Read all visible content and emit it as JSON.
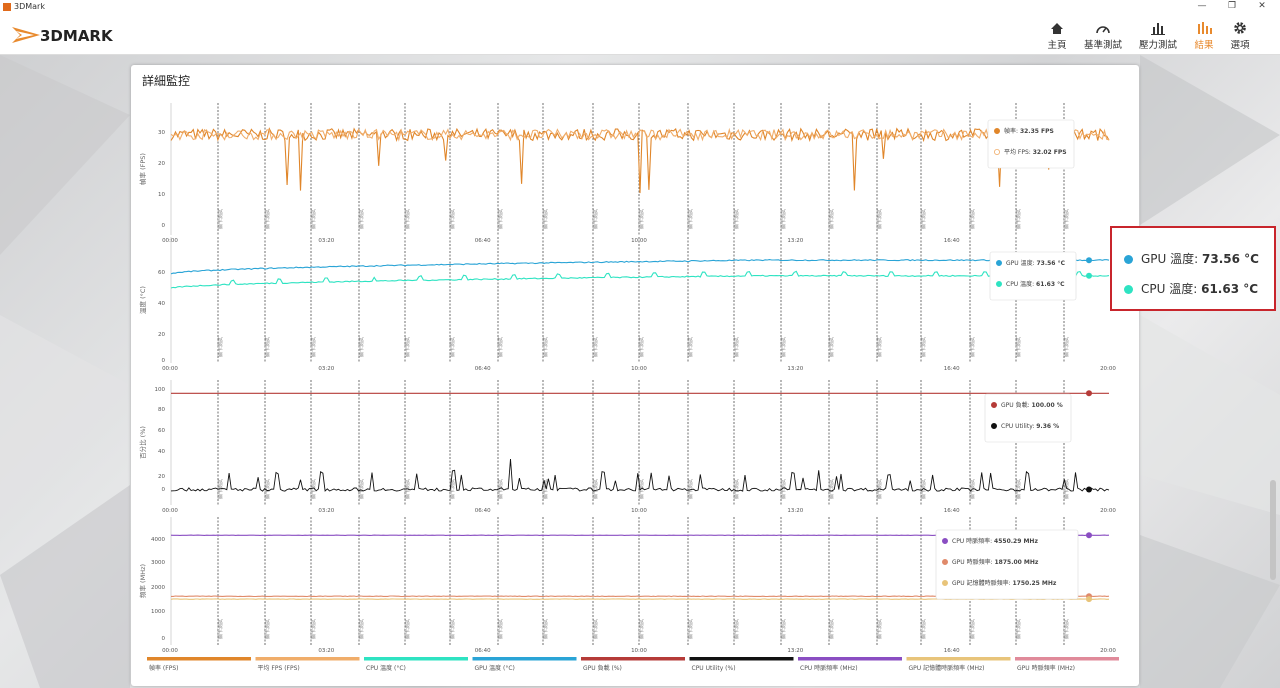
{
  "window": {
    "title": "3DMark",
    "min": "—",
    "restore": "❐",
    "close": "✕"
  },
  "header": {
    "logo_text": "3DMARK",
    "nav": [
      {
        "label": "主頁",
        "icon": "home-icon",
        "active": false
      },
      {
        "label": "基準測試",
        "icon": "gauge-icon",
        "active": false
      },
      {
        "label": "壓力測試",
        "icon": "bars-icon",
        "active": false
      },
      {
        "label": "結果",
        "icon": "results-icon",
        "active": true
      },
      {
        "label": "選項",
        "icon": "gear-icon",
        "active": false
      }
    ]
  },
  "panel": {
    "title": "詳細監控"
  },
  "marker_label": "顯卡測試",
  "time_ticks": [
    "00:00",
    "03:20",
    "06:40",
    "10:00",
    "13:20",
    "16:40",
    "20:00"
  ],
  "chart_data": [
    {
      "type": "line",
      "ylabel": "幀率 (FPS)",
      "yticks": [
        "30",
        "20",
        "10",
        "0"
      ],
      "ylim": [
        0,
        40
      ],
      "series": [
        {
          "name": "幀率",
          "value": "32.35 FPS",
          "color": "#e0862a",
          "approx_level": 32
        },
        {
          "name": "平均 FPS",
          "value": "32.02 FPS",
          "color": "#f0ad6a",
          "approx_level": 32
        }
      ]
    },
    {
      "type": "line",
      "ylabel": "溫度 (°C)",
      "yticks": [
        "60",
        "40",
        "20",
        "0"
      ],
      "ylim": [
        0,
        85
      ],
      "series": [
        {
          "name": "GPU 溫度",
          "value": "73.56 °C",
          "color": "#2aa4d6",
          "start": 63,
          "end": 73.5
        },
        {
          "name": "CPU 溫度",
          "value": "61.63 °C",
          "color": "#2ee3c2",
          "start": 52,
          "end": 61.6
        }
      ]
    },
    {
      "type": "line",
      "ylabel": "百分比 (%)",
      "yticks": [
        "100",
        "80",
        "60",
        "40",
        "20",
        "0"
      ],
      "ylim": [
        0,
        105
      ],
      "series": [
        {
          "name": "GPU 負載",
          "value": "100.00 %",
          "color": "#b53b38",
          "level": 100
        },
        {
          "name": "CPU Utility",
          "value": "9.36 %",
          "color": "#111111",
          "level": 9
        }
      ]
    },
    {
      "type": "line",
      "ylabel": "頻率 (MHz)",
      "yticks": [
        "4000",
        "3000",
        "2000",
        "1000",
        "0"
      ],
      "ylim": [
        0,
        5000
      ],
      "series": [
        {
          "name": "CPU 時脈頻率",
          "value": "4550.29 MHz",
          "color": "#8a4ec2",
          "level": 4550
        },
        {
          "name": "GPU 時脈頻率",
          "value": "1875.00 MHz",
          "color": "#e08a6a",
          "level": 1875
        },
        {
          "name": "GPU 記憶體時脈頻率",
          "value": "1750.25 MHz",
          "color": "#e8c47a",
          "level": 1750
        }
      ]
    }
  ],
  "legend": [
    {
      "label": "幀率 (FPS)",
      "color": "#e0862a"
    },
    {
      "label": "平均 FPS (FPS)",
      "color": "#f0ad6a"
    },
    {
      "label": "CPU 溫度 (°C)",
      "color": "#2ee3c2"
    },
    {
      "label": "GPU 溫度 (°C)",
      "color": "#2aa4d6"
    },
    {
      "label": "GPU 負載 (%)",
      "color": "#b53b38"
    },
    {
      "label": "CPU Utility (%)",
      "color": "#111111"
    },
    {
      "label": "CPU 時脈頻率 (MHz)",
      "color": "#8a4ec2"
    },
    {
      "label": "GPU 記憶體時脈頻率 (MHz)",
      "color": "#e8c47a"
    },
    {
      "label": "GPU 時脈頻率 (MHz)",
      "color": "#e08a9a"
    }
  ],
  "callout": {
    "gpu_label": "GPU 溫度:",
    "gpu_value": "73.56 °C",
    "gpu_color": "#2aa4d6",
    "cpu_label": "CPU 溫度:",
    "cpu_value": "61.63 °C",
    "cpu_color": "#2ee3c2"
  }
}
